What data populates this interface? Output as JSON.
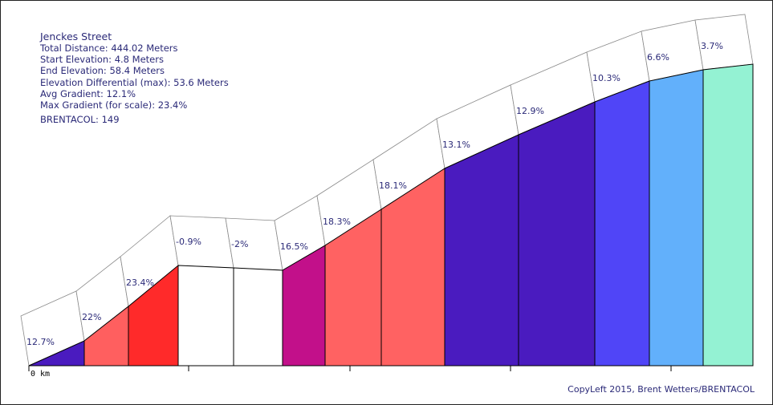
{
  "info": {
    "street": "Jenckes Street",
    "total_distance": "Total Distance: 444.02 Meters",
    "start_elevation": "Start Elevation: 4.8 Meters",
    "end_elevation": "End Elevation: 58.4 Meters",
    "elevation_differential": "Elevation Differential (max): 53.6 Meters",
    "avg_gradient": "Avg Gradient: 12.1%",
    "max_gradient": "Max Gradient (for scale): 23.4%",
    "brentacol": "BRENTACOL: 149"
  },
  "copyright": "CopyLeft 2015, Brent Wetters/BRENTACOL",
  "chart_data": {
    "type": "area",
    "x_axis_start_label": "0 km",
    "segments": [
      {
        "gradient": 12.7,
        "label": "12.7%",
        "color": "#4a1bbf"
      },
      {
        "gradient": 22,
        "label": "22%",
        "color": "#ff5f5f"
      },
      {
        "gradient": 23.4,
        "label": "23.4%",
        "color": "#ff2a2a"
      },
      {
        "gradient": -0.9,
        "label": "-0.9%",
        "color": "#ffffff"
      },
      {
        "gradient": -2,
        "label": "-2%",
        "color": "#ffffff"
      },
      {
        "gradient": 16.5,
        "label": "16.5%",
        "color": "#c2108a"
      },
      {
        "gradient": 18.3,
        "label": "18.3%",
        "color": "#ff6262"
      },
      {
        "gradient": 18.1,
        "label": "18.1%",
        "color": "#ff6262"
      },
      {
        "gradient": 13.1,
        "label": "13.1%",
        "color": "#4a1bbf"
      },
      {
        "gradient": 12.9,
        "label": "12.9%",
        "color": "#4a1bbf"
      },
      {
        "gradient": 10.3,
        "label": "10.3%",
        "color": "#5045f7"
      },
      {
        "gradient": 6.6,
        "label": "6.6%",
        "color": "#62b0fb"
      },
      {
        "gradient": 3.7,
        "label": "3.7%",
        "color": "#94f2d3"
      }
    ]
  }
}
